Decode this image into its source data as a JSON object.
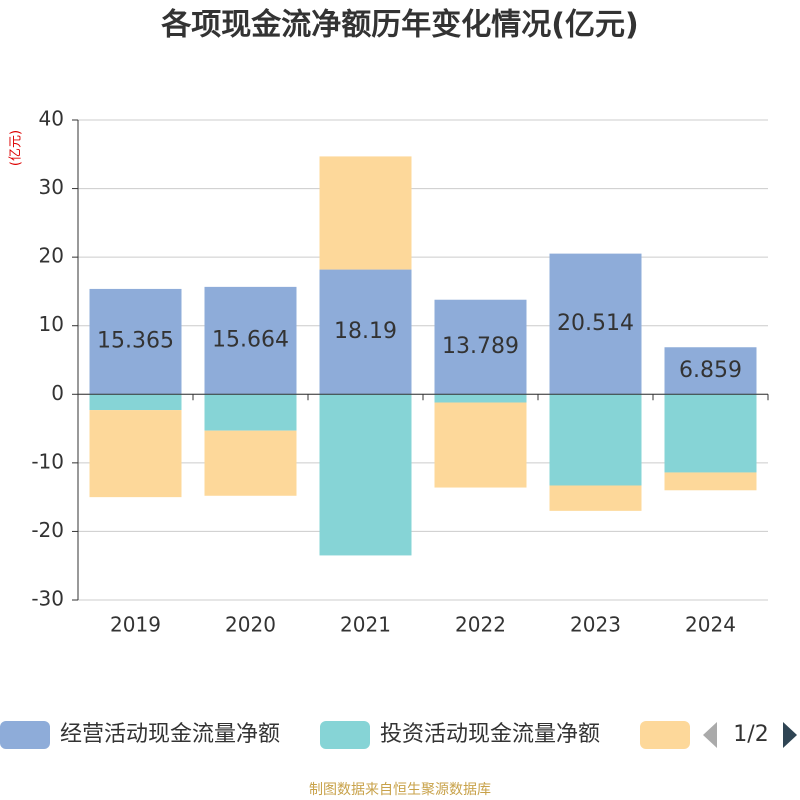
{
  "chart_data": {
    "type": "stacked-bar",
    "title": "各项现金流净额历年变化情况(亿元)",
    "y_axis_label": "(亿元)",
    "categories": [
      "2019",
      "2020",
      "2021",
      "2022",
      "2023",
      "2024"
    ],
    "series": [
      {
        "name": "经营活动现金流量净额",
        "color": "#8eacd9",
        "values": [
          15.365,
          15.664,
          18.19,
          13.789,
          20.514,
          6.859
        ],
        "show_labels": true
      },
      {
        "name": "投资活动现金流量净额",
        "color": "#86d4d6",
        "values": [
          -2.3,
          -5.3,
          -23.5,
          -1.2,
          -13.3,
          -11.4
        ]
      },
      {
        "color": "#fdd89a",
        "values": [
          -12.7,
          -9.5,
          16.5,
          -12.4,
          -3.7,
          -2.6
        ]
      }
    ],
    "ylim": [
      -30,
      40
    ],
    "yticks": [
      -30,
      -20,
      -10,
      0,
      10,
      20,
      30,
      40
    ],
    "grid": true,
    "legend_page": "1/2",
    "source": "制图数据来自恒生聚源数据库"
  }
}
